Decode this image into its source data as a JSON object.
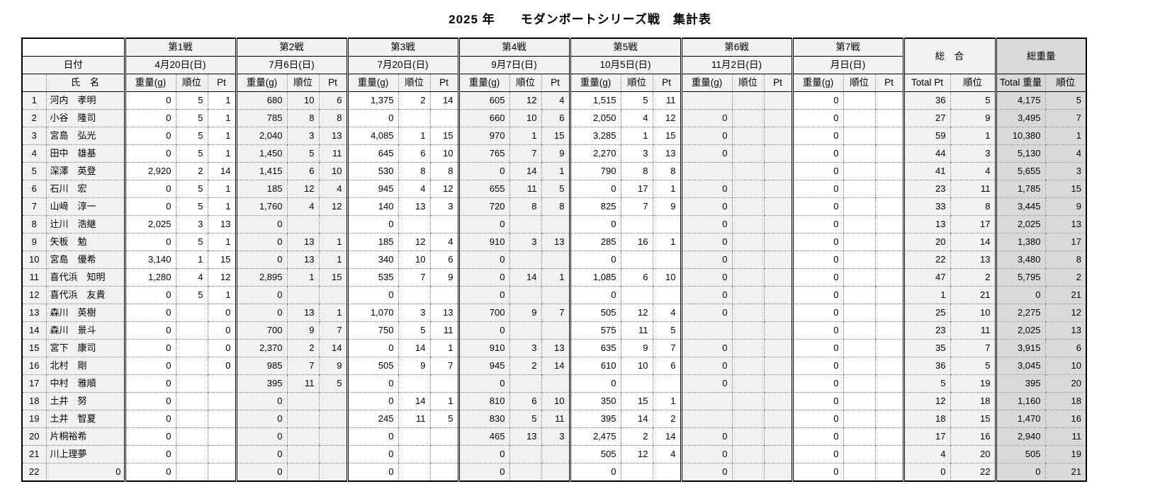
{
  "title": "2025 年　　モダンボートシリーズ戦　集計表",
  "table": {
    "date_label": "日付",
    "name_label": "氏　名",
    "sub_labels": {
      "weight": "重量(g)",
      "rank": "順位",
      "pt": "Pt"
    },
    "rounds": [
      {
        "name": "第1戦",
        "date": "4月20日(日)"
      },
      {
        "name": "第2戦",
        "date": "7月6日(日)"
      },
      {
        "name": "第3戦",
        "date": "7月20日(日)"
      },
      {
        "name": "第4戦",
        "date": "9月7日(日)"
      },
      {
        "name": "第5戦",
        "date": "10月5日(日)"
      },
      {
        "name": "第6戦",
        "date": "11月2日(日)"
      },
      {
        "name": "第7戦",
        "date": "月日(日)"
      }
    ],
    "overall": {
      "label": "総　合",
      "cols": [
        "Total Pt",
        "順位"
      ]
    },
    "total_weight": {
      "label": "総重量",
      "cols": [
        "Total 重量",
        "順位"
      ]
    },
    "rows": [
      {
        "num": "1",
        "name": "河内　孝明",
        "r": [
          [
            "0",
            "5",
            "1"
          ],
          [
            "680",
            "10",
            "6"
          ],
          [
            "1,375",
            "2",
            "14"
          ],
          [
            "605",
            "12",
            "4"
          ],
          [
            "1,515",
            "5",
            "11"
          ],
          [
            "",
            "",
            ""
          ],
          [
            "0",
            "",
            ""
          ]
        ],
        "tp": "36",
        "tpr": "5",
        "tw": "4,175",
        "twr": "5"
      },
      {
        "num": "2",
        "name": "小谷　隆司",
        "r": [
          [
            "0",
            "5",
            "1"
          ],
          [
            "785",
            "8",
            "8"
          ],
          [
            "0",
            "",
            ""
          ],
          [
            "660",
            "10",
            "6"
          ],
          [
            "2,050",
            "4",
            "12"
          ],
          [
            "0",
            "",
            ""
          ],
          [
            "0",
            "",
            ""
          ]
        ],
        "tp": "27",
        "tpr": "9",
        "tw": "3,495",
        "twr": "7"
      },
      {
        "num": "3",
        "name": "宮島　弘光",
        "r": [
          [
            "0",
            "5",
            "1"
          ],
          [
            "2,040",
            "3",
            "13"
          ],
          [
            "4,085",
            "1",
            "15"
          ],
          [
            "970",
            "1",
            "15"
          ],
          [
            "3,285",
            "1",
            "15"
          ],
          [
            "0",
            "",
            ""
          ],
          [
            "0",
            "",
            ""
          ]
        ],
        "tp": "59",
        "tpr": "1",
        "tw": "10,380",
        "twr": "1"
      },
      {
        "num": "4",
        "name": "田中　雄基",
        "r": [
          [
            "0",
            "5",
            "1"
          ],
          [
            "1,450",
            "5",
            "11"
          ],
          [
            "645",
            "6",
            "10"
          ],
          [
            "765",
            "7",
            "9"
          ],
          [
            "2,270",
            "3",
            "13"
          ],
          [
            "0",
            "",
            ""
          ],
          [
            "0",
            "",
            ""
          ]
        ],
        "tp": "44",
        "tpr": "3",
        "tw": "5,130",
        "twr": "4"
      },
      {
        "num": "5",
        "name": "深澤　英登",
        "r": [
          [
            "2,920",
            "2",
            "14"
          ],
          [
            "1,415",
            "6",
            "10"
          ],
          [
            "530",
            "8",
            "8"
          ],
          [
            "0",
            "14",
            "1"
          ],
          [
            "790",
            "8",
            "8"
          ],
          [
            "",
            "",
            ""
          ],
          [
            "0",
            "",
            ""
          ]
        ],
        "tp": "41",
        "tpr": "4",
        "tw": "5,655",
        "twr": "3"
      },
      {
        "num": "6",
        "name": "石川　宏",
        "r": [
          [
            "0",
            "5",
            "1"
          ],
          [
            "185",
            "12",
            "4"
          ],
          [
            "945",
            "4",
            "12"
          ],
          [
            "655",
            "11",
            "5"
          ],
          [
            "0",
            "17",
            "1"
          ],
          [
            "0",
            "",
            ""
          ],
          [
            "0",
            "",
            ""
          ]
        ],
        "tp": "23",
        "tpr": "11",
        "tw": "1,785",
        "twr": "15"
      },
      {
        "num": "7",
        "name": "山﨑　淳一",
        "r": [
          [
            "0",
            "5",
            "1"
          ],
          [
            "1,760",
            "4",
            "12"
          ],
          [
            "140",
            "13",
            "3"
          ],
          [
            "720",
            "8",
            "8"
          ],
          [
            "825",
            "7",
            "9"
          ],
          [
            "0",
            "",
            ""
          ],
          [
            "0",
            "",
            ""
          ]
        ],
        "tp": "33",
        "tpr": "8",
        "tw": "3,445",
        "twr": "9"
      },
      {
        "num": "8",
        "name": "辻川　浩継",
        "r": [
          [
            "2,025",
            "3",
            "13"
          ],
          [
            "0",
            "",
            ""
          ],
          [
            "0",
            "",
            ""
          ],
          [
            "0",
            "",
            ""
          ],
          [
            "0",
            "",
            ""
          ],
          [
            "0",
            "",
            ""
          ],
          [
            "0",
            "",
            ""
          ]
        ],
        "tp": "13",
        "tpr": "17",
        "tw": "2,025",
        "twr": "13"
      },
      {
        "num": "9",
        "name": "矢板　勉",
        "r": [
          [
            "0",
            "5",
            "1"
          ],
          [
            "0",
            "13",
            "1"
          ],
          [
            "185",
            "12",
            "4"
          ],
          [
            "910",
            "3",
            "13"
          ],
          [
            "285",
            "16",
            "1"
          ],
          [
            "0",
            "",
            ""
          ],
          [
            "0",
            "",
            ""
          ]
        ],
        "tp": "20",
        "tpr": "14",
        "tw": "1,380",
        "twr": "17"
      },
      {
        "num": "10",
        "name": "宮島　優希",
        "r": [
          [
            "3,140",
            "1",
            "15"
          ],
          [
            "0",
            "13",
            "1"
          ],
          [
            "340",
            "10",
            "6"
          ],
          [
            "0",
            "",
            ""
          ],
          [
            "0",
            "",
            ""
          ],
          [
            "0",
            "",
            ""
          ],
          [
            "0",
            "",
            ""
          ]
        ],
        "tp": "22",
        "tpr": "13",
        "tw": "3,480",
        "twr": "8"
      },
      {
        "num": "11",
        "name": "喜代浜　知明",
        "r": [
          [
            "1,280",
            "4",
            "12"
          ],
          [
            "2,895",
            "1",
            "15"
          ],
          [
            "535",
            "7",
            "9"
          ],
          [
            "0",
            "14",
            "1"
          ],
          [
            "1,085",
            "6",
            "10"
          ],
          [
            "0",
            "",
            ""
          ],
          [
            "0",
            "",
            ""
          ]
        ],
        "tp": "47",
        "tpr": "2",
        "tw": "5,795",
        "twr": "2"
      },
      {
        "num": "12",
        "name": "喜代浜　友貴",
        "r": [
          [
            "0",
            "5",
            "1"
          ],
          [
            "0",
            "",
            ""
          ],
          [
            "0",
            "",
            ""
          ],
          [
            "0",
            "",
            ""
          ],
          [
            "0",
            "",
            ""
          ],
          [
            "0",
            "",
            ""
          ],
          [
            "0",
            "",
            ""
          ]
        ],
        "tp": "1",
        "tpr": "21",
        "tw": "0",
        "twr": "21"
      },
      {
        "num": "13",
        "name": "森川　英樹",
        "r": [
          [
            "0",
            "",
            "0"
          ],
          [
            "0",
            "13",
            "1"
          ],
          [
            "1,070",
            "3",
            "13"
          ],
          [
            "700",
            "9",
            "7"
          ],
          [
            "505",
            "12",
            "4"
          ],
          [
            "0",
            "",
            ""
          ],
          [
            "0",
            "",
            ""
          ]
        ],
        "tp": "25",
        "tpr": "10",
        "tw": "2,275",
        "twr": "12"
      },
      {
        "num": "14",
        "name": "森川　景斗",
        "r": [
          [
            "0",
            "",
            "0"
          ],
          [
            "700",
            "9",
            "7"
          ],
          [
            "750",
            "5",
            "11"
          ],
          [
            "0",
            "",
            ""
          ],
          [
            "575",
            "11",
            "5"
          ],
          [
            "",
            "",
            ""
          ],
          [
            "0",
            "",
            ""
          ]
        ],
        "tp": "23",
        "tpr": "11",
        "tw": "2,025",
        "twr": "13"
      },
      {
        "num": "15",
        "name": "宮下　康司",
        "r": [
          [
            "0",
            "",
            "0"
          ],
          [
            "2,370",
            "2",
            "14"
          ],
          [
            "0",
            "14",
            "1"
          ],
          [
            "910",
            "3",
            "13"
          ],
          [
            "635",
            "9",
            "7"
          ],
          [
            "0",
            "",
            ""
          ],
          [
            "0",
            "",
            ""
          ]
        ],
        "tp": "35",
        "tpr": "7",
        "tw": "3,915",
        "twr": "6"
      },
      {
        "num": "16",
        "name": "北村　剛",
        "r": [
          [
            "0",
            "",
            "0"
          ],
          [
            "985",
            "7",
            "9"
          ],
          [
            "505",
            "9",
            "7"
          ],
          [
            "945",
            "2",
            "14"
          ],
          [
            "610",
            "10",
            "6"
          ],
          [
            "0",
            "",
            ""
          ],
          [
            "0",
            "",
            ""
          ]
        ],
        "tp": "36",
        "tpr": "5",
        "tw": "3,045",
        "twr": "10"
      },
      {
        "num": "17",
        "name": "中村　雅順",
        "r": [
          [
            "0",
            "",
            ""
          ],
          [
            "395",
            "11",
            "5"
          ],
          [
            "0",
            "",
            ""
          ],
          [
            "0",
            "",
            ""
          ],
          [
            "0",
            "",
            ""
          ],
          [
            "0",
            "",
            ""
          ],
          [
            "0",
            "",
            ""
          ]
        ],
        "tp": "5",
        "tpr": "19",
        "tw": "395",
        "twr": "20"
      },
      {
        "num": "18",
        "name": "土井　努",
        "r": [
          [
            "0",
            "",
            ""
          ],
          [
            "0",
            "",
            ""
          ],
          [
            "0",
            "14",
            "1"
          ],
          [
            "810",
            "6",
            "10"
          ],
          [
            "350",
            "15",
            "1"
          ],
          [
            "",
            "",
            ""
          ],
          [
            "0",
            "",
            ""
          ]
        ],
        "tp": "12",
        "tpr": "18",
        "tw": "1,160",
        "twr": "18"
      },
      {
        "num": "19",
        "name": "土井　智夏",
        "r": [
          [
            "0",
            "",
            ""
          ],
          [
            "0",
            "",
            ""
          ],
          [
            "245",
            "11",
            "5"
          ],
          [
            "830",
            "5",
            "11"
          ],
          [
            "395",
            "14",
            "2"
          ],
          [
            "",
            "",
            ""
          ],
          [
            "0",
            "",
            ""
          ]
        ],
        "tp": "18",
        "tpr": "15",
        "tw": "1,470",
        "twr": "16"
      },
      {
        "num": "20",
        "name": "片桐裕希",
        "r": [
          [
            "0",
            "",
            ""
          ],
          [
            "0",
            "",
            ""
          ],
          [
            "0",
            "",
            ""
          ],
          [
            "465",
            "13",
            "3"
          ],
          [
            "2,475",
            "2",
            "14"
          ],
          [
            "0",
            "",
            ""
          ],
          [
            "0",
            "",
            ""
          ]
        ],
        "tp": "17",
        "tpr": "16",
        "tw": "2,940",
        "twr": "11"
      },
      {
        "num": "21",
        "name": "川上理夢",
        "r": [
          [
            "0",
            "",
            ""
          ],
          [
            "0",
            "",
            ""
          ],
          [
            "0",
            "",
            ""
          ],
          [
            "0",
            "",
            ""
          ],
          [
            "505",
            "12",
            "4"
          ],
          [
            "0",
            "",
            ""
          ],
          [
            "0",
            "",
            ""
          ]
        ],
        "tp": "4",
        "tpr": "20",
        "tw": "505",
        "twr": "19"
      },
      {
        "num": "22",
        "name": "0",
        "name_align": "right",
        "r": [
          [
            "0",
            "",
            ""
          ],
          [
            "0",
            "",
            ""
          ],
          [
            "0",
            "",
            ""
          ],
          [
            "0",
            "",
            ""
          ],
          [
            "0",
            "",
            ""
          ],
          [
            "0",
            "",
            ""
          ],
          [
            "0",
            "",
            ""
          ]
        ],
        "tp": "0",
        "tpr": "22",
        "tw": "0",
        "twr": "21"
      }
    ]
  },
  "colors": {
    "header_bg": "#f2f2f2",
    "shaded_round_bg": "#f2f2f2",
    "total_weight_bg": "#d9d9d9",
    "border": "#000000",
    "dotted_grid": "#7f7f7f"
  }
}
